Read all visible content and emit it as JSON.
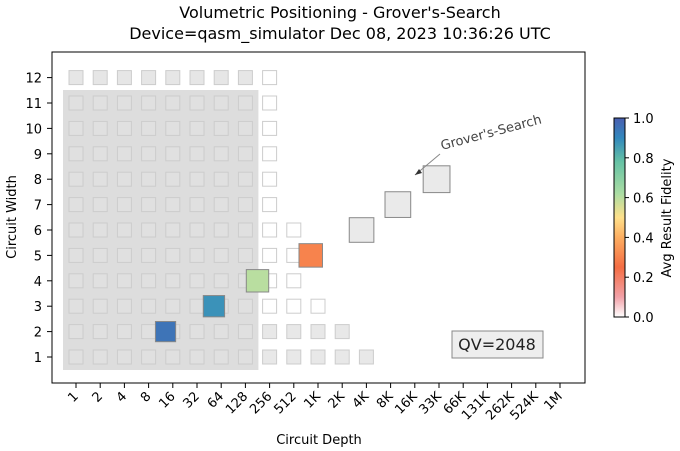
{
  "chart_data": {
    "type": "heatmap",
    "title": "Volumetric Positioning - Grover's-Search",
    "subtitle": "Device=qasm_simulator  Dec 08, 2023 10:36:26 UTC",
    "xlabel": "Circuit Depth",
    "ylabel": "Circuit Width",
    "x_ticks": [
      "1",
      "2",
      "4",
      "8",
      "16",
      "32",
      "64",
      "128",
      "256",
      "512",
      "1K",
      "2K",
      "4K",
      "8K",
      "16K",
      "33K",
      "66K",
      "131K",
      "262K",
      "524K",
      "1M"
    ],
    "y_ticks": [
      "1",
      "2",
      "3",
      "4",
      "5",
      "6",
      "7",
      "8",
      "9",
      "10",
      "11",
      "12"
    ],
    "qv_label": "QV=2048",
    "qv_region": {
      "max_depth_index": 7,
      "max_width": 11
    },
    "annotation": "Grover's-Search",
    "colorbar": {
      "label": "Avg Result Fidelity",
      "min": 0.0,
      "max": 1.0,
      "ticks": [
        "0.0",
        "0.2",
        "0.4",
        "0.6",
        "0.8",
        "1.0"
      ]
    },
    "background_grid": [
      {
        "width": 1,
        "max_depth_index": 12
      },
      {
        "width": 2,
        "max_depth_index": 11
      },
      {
        "width": 3,
        "max_depth_index": 10
      },
      {
        "width": 4,
        "max_depth_index": 9
      },
      {
        "width": 5,
        "max_depth_index": 9
      },
      {
        "width": 6,
        "max_depth_index": 9
      },
      {
        "width": 7,
        "max_depth_index": 8
      },
      {
        "width": 8,
        "max_depth_index": 8
      },
      {
        "width": 9,
        "max_depth_index": 8
      },
      {
        "width": 10,
        "max_depth_index": 8
      },
      {
        "width": 11,
        "max_depth_index": 8
      },
      {
        "width": 12,
        "max_depth_index": 8
      }
    ],
    "points": [
      {
        "width": 2,
        "depth_index": 3.7,
        "fidelity": 0.95
      },
      {
        "width": 3,
        "depth_index": 5.7,
        "fidelity": 0.88
      },
      {
        "width": 4,
        "depth_index": 7.5,
        "fidelity": 0.6
      },
      {
        "width": 5,
        "depth_index": 9.7,
        "fidelity": 0.3
      },
      {
        "width": 6,
        "depth_index": 11.8,
        "fidelity": 0.05
      },
      {
        "width": 7,
        "depth_index": 13.3,
        "fidelity": 0.05
      },
      {
        "width": 8,
        "depth_index": 14.9,
        "fidelity": 0.05
      }
    ],
    "grid": false
  }
}
